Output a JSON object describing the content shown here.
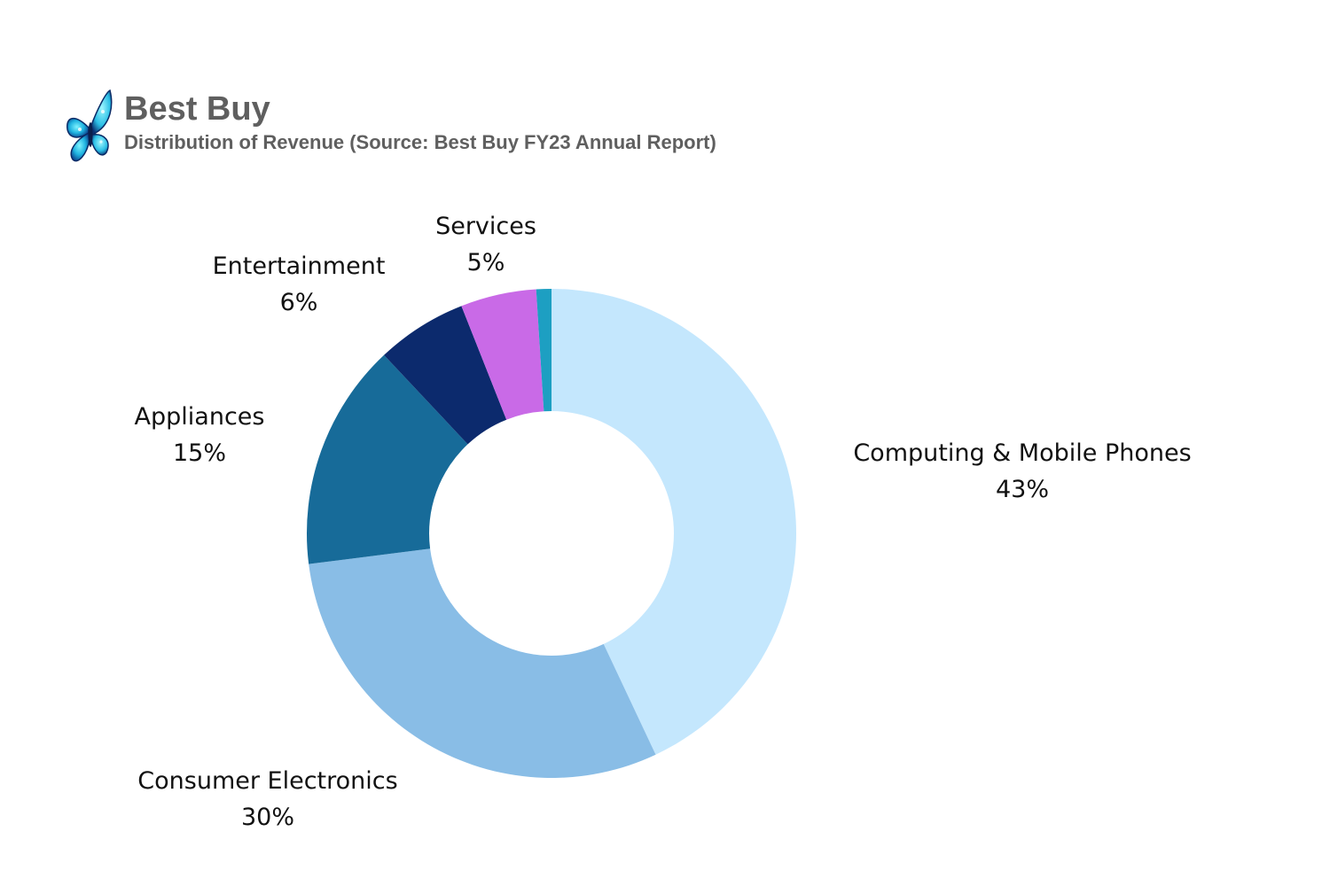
{
  "header": {
    "title": "Best Buy",
    "subtitle": "Distribution of Revenue (Source: Best Buy FY23 Annual Report)",
    "logo_icon": "butterfly-icon"
  },
  "chart_data": {
    "type": "pie",
    "style": "donut",
    "title": "Best Buy",
    "subtitle": "Distribution of Revenue (Source: Best Buy FY23 Annual Report)",
    "legend": "none",
    "slices": [
      {
        "label": "Computing & Mobile Phones",
        "value": 43,
        "value_label": "43%",
        "color": "#c4e7fd"
      },
      {
        "label": "Consumer Electronics",
        "value": 30,
        "value_label": "30%",
        "color": "#89bde6"
      },
      {
        "label": "Appliances",
        "value": 15,
        "value_label": "15%",
        "color": "#176b99"
      },
      {
        "label": "Entertainment",
        "value": 6,
        "value_label": "6%",
        "color": "#0c2a6d"
      },
      {
        "label": "Services",
        "value": 5,
        "value_label": "5%",
        "color": "#c96ae7"
      },
      {
        "label": "",
        "value": 1,
        "value_label": "",
        "color": "#1d9fc2"
      }
    ]
  }
}
